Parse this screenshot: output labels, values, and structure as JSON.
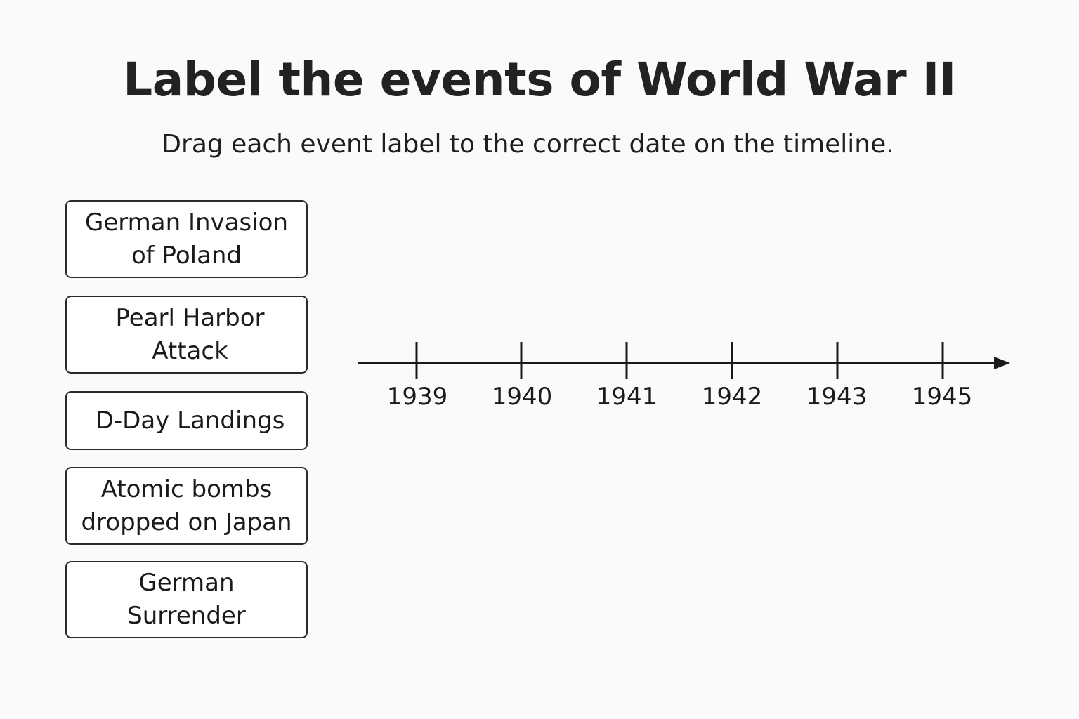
{
  "title": "Label the events of World War II",
  "instructions": "Drag each event label to the correct date on the timeline.",
  "event_labels": [
    {
      "line1": "German Invasion",
      "line2": "of Poland"
    },
    {
      "line1": "Pearl Harbor",
      "line2": "Attack"
    },
    {
      "line1": "D-Day Landings",
      "line2": ""
    },
    {
      "line1": "Atomic bombs",
      "line2": "dropped on Japan"
    },
    {
      "line1": "German",
      "line2": "Surrender"
    }
  ],
  "timeline": {
    "years": [
      "1939",
      "1940",
      "1941",
      "1942",
      "1943",
      "1945"
    ]
  },
  "colors": {
    "background": "#fafafa",
    "text": "#1a1a1a",
    "border": "#2a2a2a"
  }
}
